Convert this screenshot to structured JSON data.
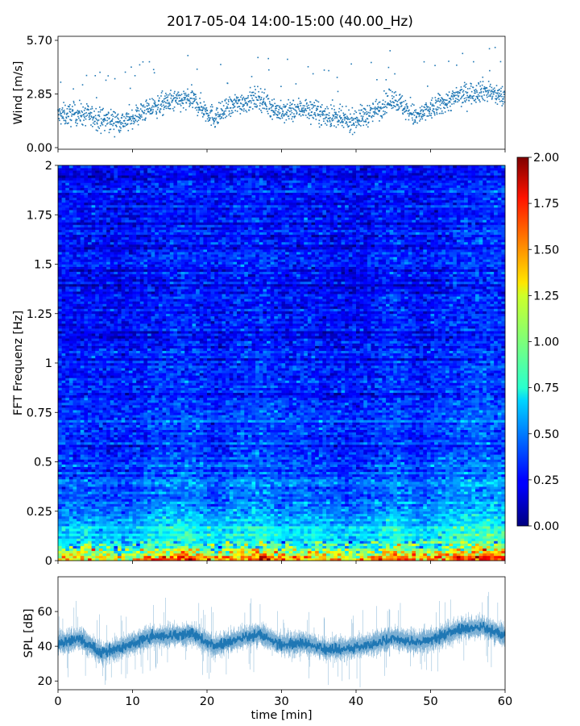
{
  "figure": {
    "title": "2017-05-04 14:00-15:00 (40.00_Hz)",
    "xlabel": "time [min]"
  },
  "chart_data": [
    {
      "type": "scatter",
      "panel": "wind",
      "ylabel": "Wind [m/s]",
      "xlim": [
        0,
        60
      ],
      "ylim": [
        0,
        5.7
      ],
      "yticks": [
        0.0,
        2.85,
        5.7
      ],
      "ytick_labels": [
        "0.00",
        "2.85",
        "5.70"
      ],
      "marker_color": "#1f77b4",
      "trend": {
        "x": [
          0,
          3,
          6,
          9,
          12,
          15,
          18,
          21,
          24,
          27,
          30,
          33,
          36,
          39,
          42,
          45,
          48,
          51,
          54,
          57,
          60
        ],
        "y": [
          1.7,
          1.8,
          1.5,
          1.4,
          2.0,
          2.4,
          2.5,
          1.6,
          2.3,
          2.6,
          1.8,
          2.1,
          1.7,
          1.4,
          1.8,
          2.6,
          1.6,
          2.2,
          2.7,
          3.0,
          2.6
        ]
      }
    },
    {
      "type": "heatmap",
      "panel": "spectrogram",
      "ylabel": "FFT Frequenz [Hz]",
      "xlim": [
        0,
        60
      ],
      "ylim": [
        0,
        2
      ],
      "yticks": [
        0,
        0.25,
        0.5,
        0.75,
        1,
        1.25,
        1.5,
        1.75,
        2
      ],
      "ytick_labels": [
        "0",
        "0.25",
        "0.5",
        "0.75",
        "1",
        "1.25",
        "1.5",
        "1.75",
        "2"
      ],
      "colormap": "jet",
      "colorbar": {
        "range": [
          0,
          2
        ],
        "ticks": [
          "0.00",
          "0.25",
          "0.50",
          "0.75",
          "1.00",
          "1.25",
          "1.50",
          "1.75",
          "2.00"
        ]
      },
      "intensity_profile": {
        "freq": [
          0,
          0.05,
          0.1,
          0.2,
          0.3,
          0.5,
          0.75,
          1.0,
          1.5,
          2.0
        ],
        "level": [
          1.6,
          1.1,
          0.8,
          0.6,
          0.5,
          0.4,
          0.35,
          0.3,
          0.28,
          0.25
        ]
      }
    },
    {
      "type": "line",
      "panel": "spl",
      "ylabel": "SPL [dB]",
      "xlim": [
        0,
        60
      ],
      "ylim": [
        15,
        80
      ],
      "yticks": [
        20,
        40,
        60
      ],
      "ytick_labels": [
        "20",
        "40",
        "60"
      ],
      "xticks": [
        0,
        10,
        20,
        30,
        40,
        50,
        60
      ],
      "xtick_labels": [
        "0",
        "10",
        "20",
        "30",
        "40",
        "50",
        "60"
      ],
      "line_color": "#1f77b4",
      "trend": {
        "x": [
          0,
          3,
          6,
          9,
          12,
          15,
          18,
          21,
          24,
          27,
          30,
          33,
          36,
          39,
          42,
          45,
          48,
          51,
          54,
          57,
          60
        ],
        "y": [
          42,
          44,
          36,
          40,
          45,
          46,
          47,
          40,
          44,
          47,
          41,
          42,
          38,
          39,
          41,
          45,
          42,
          45,
          50,
          51,
          46
        ]
      }
    }
  ]
}
